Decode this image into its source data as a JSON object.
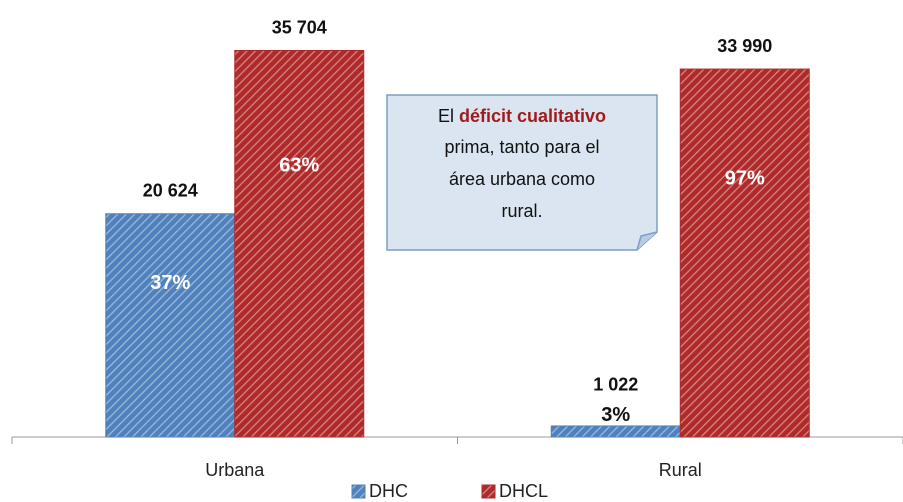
{
  "chart_data": {
    "type": "bar",
    "categories": [
      "Urbana",
      "Rural"
    ],
    "series": [
      {
        "name": "DHC",
        "color": "#4f81bd",
        "values": [
          20624,
          1022
        ],
        "value_labels": [
          "20 624",
          "1 022"
        ],
        "percent_labels": [
          "37%",
          "3%"
        ]
      },
      {
        "name": "DHCL",
        "color": "#b02a2a",
        "values": [
          35704,
          33990
        ],
        "value_labels": [
          "35 704",
          "33 990"
        ],
        "percent_labels": [
          "63%",
          "97%"
        ]
      }
    ],
    "ylim": [
      0,
      40000
    ],
    "annotation": {
      "lead": "El ",
      "emphasis": "déficit cualitativo",
      "lines": [
        "prima, tanto para el",
        "área urbana como",
        "rural."
      ]
    }
  }
}
